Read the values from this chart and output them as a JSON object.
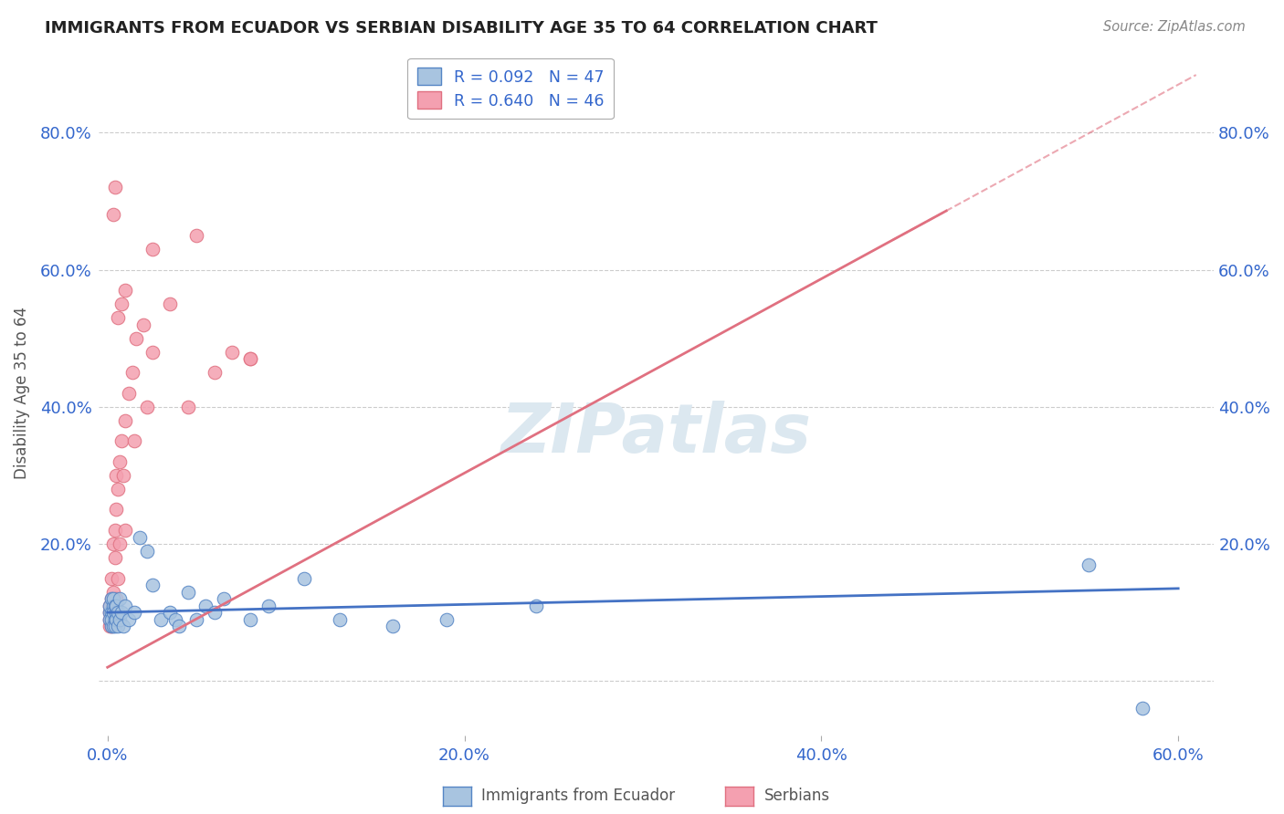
{
  "title": "IMMIGRANTS FROM ECUADOR VS SERBIAN DISABILITY AGE 35 TO 64 CORRELATION CHART",
  "source": "Source: ZipAtlas.com",
  "ylabel": "Disability Age 35 to 64",
  "xlim": [
    -0.005,
    0.62
  ],
  "ylim": [
    -0.08,
    0.92
  ],
  "yticks": [
    0.0,
    0.2,
    0.4,
    0.6,
    0.8
  ],
  "xticks": [
    0.0,
    0.2,
    0.4,
    0.6
  ],
  "xtick_labels": [
    "0.0%",
    "20.0%",
    "40.0%",
    "60.0%"
  ],
  "ytick_labels": [
    "",
    "20.0%",
    "40.0%",
    "60.0%",
    "80.0%"
  ],
  "ecuador_color": "#a8c4e0",
  "serbian_color": "#f4a0b0",
  "ecuador_edge_color": "#5585c5",
  "serbian_edge_color": "#e07080",
  "ecuador_line_color": "#4472c4",
  "serbian_line_color": "#e07080",
  "watermark_color": "#dce8f0",
  "background_color": "#ffffff",
  "grid_color": "#cccccc",
  "title_color": "#222222",
  "legend_text_color": "#3366cc",
  "axis_label_color": "#555555",
  "tick_label_color": "#3366cc",
  "figsize": [
    14.06,
    8.92
  ],
  "dpi": 100,
  "ecuador_points": [
    [
      0.001,
      0.1
    ],
    [
      0.001,
      0.09
    ],
    [
      0.001,
      0.11
    ],
    [
      0.002,
      0.08
    ],
    [
      0.002,
      0.12
    ],
    [
      0.002,
      0.1
    ],
    [
      0.002,
      0.09
    ],
    [
      0.003,
      0.11
    ],
    [
      0.003,
      0.08
    ],
    [
      0.003,
      0.1
    ],
    [
      0.003,
      0.12
    ],
    [
      0.004,
      0.09
    ],
    [
      0.004,
      0.11
    ],
    [
      0.004,
      0.08
    ],
    [
      0.005,
      0.1
    ],
    [
      0.005,
      0.09
    ],
    [
      0.005,
      0.11
    ],
    [
      0.006,
      0.1
    ],
    [
      0.006,
      0.08
    ],
    [
      0.007,
      0.12
    ],
    [
      0.007,
      0.09
    ],
    [
      0.008,
      0.1
    ],
    [
      0.009,
      0.08
    ],
    [
      0.01,
      0.11
    ],
    [
      0.012,
      0.09
    ],
    [
      0.015,
      0.1
    ],
    [
      0.018,
      0.21
    ],
    [
      0.022,
      0.19
    ],
    [
      0.025,
      0.14
    ],
    [
      0.03,
      0.09
    ],
    [
      0.035,
      0.1
    ],
    [
      0.038,
      0.09
    ],
    [
      0.04,
      0.08
    ],
    [
      0.045,
      0.13
    ],
    [
      0.05,
      0.09
    ],
    [
      0.055,
      0.11
    ],
    [
      0.06,
      0.1
    ],
    [
      0.065,
      0.12
    ],
    [
      0.08,
      0.09
    ],
    [
      0.09,
      0.11
    ],
    [
      0.11,
      0.15
    ],
    [
      0.13,
      0.09
    ],
    [
      0.16,
      0.08
    ],
    [
      0.19,
      0.09
    ],
    [
      0.24,
      0.11
    ],
    [
      0.55,
      0.17
    ],
    [
      0.58,
      -0.04
    ]
  ],
  "serbian_points": [
    [
      0.001,
      0.08
    ],
    [
      0.001,
      0.1
    ],
    [
      0.001,
      0.09
    ],
    [
      0.001,
      0.11
    ],
    [
      0.002,
      0.1
    ],
    [
      0.002,
      0.08
    ],
    [
      0.002,
      0.12
    ],
    [
      0.002,
      0.15
    ],
    [
      0.003,
      0.09
    ],
    [
      0.003,
      0.11
    ],
    [
      0.003,
      0.13
    ],
    [
      0.003,
      0.2
    ],
    [
      0.004,
      0.1
    ],
    [
      0.004,
      0.22
    ],
    [
      0.004,
      0.18
    ],
    [
      0.005,
      0.12
    ],
    [
      0.005,
      0.25
    ],
    [
      0.005,
      0.3
    ],
    [
      0.006,
      0.15
    ],
    [
      0.006,
      0.28
    ],
    [
      0.007,
      0.32
    ],
    [
      0.007,
      0.2
    ],
    [
      0.008,
      0.35
    ],
    [
      0.009,
      0.3
    ],
    [
      0.01,
      0.38
    ],
    [
      0.01,
      0.22
    ],
    [
      0.012,
      0.42
    ],
    [
      0.014,
      0.45
    ],
    [
      0.015,
      0.35
    ],
    [
      0.016,
      0.5
    ],
    [
      0.02,
      0.52
    ],
    [
      0.022,
      0.4
    ],
    [
      0.025,
      0.48
    ],
    [
      0.035,
      0.55
    ],
    [
      0.045,
      0.4
    ],
    [
      0.05,
      0.65
    ],
    [
      0.06,
      0.45
    ],
    [
      0.07,
      0.48
    ],
    [
      0.08,
      0.47
    ],
    [
      0.003,
      0.68
    ],
    [
      0.004,
      0.72
    ],
    [
      0.006,
      0.53
    ],
    [
      0.008,
      0.55
    ],
    [
      0.01,
      0.57
    ],
    [
      0.025,
      0.63
    ],
    [
      0.08,
      0.47
    ]
  ]
}
